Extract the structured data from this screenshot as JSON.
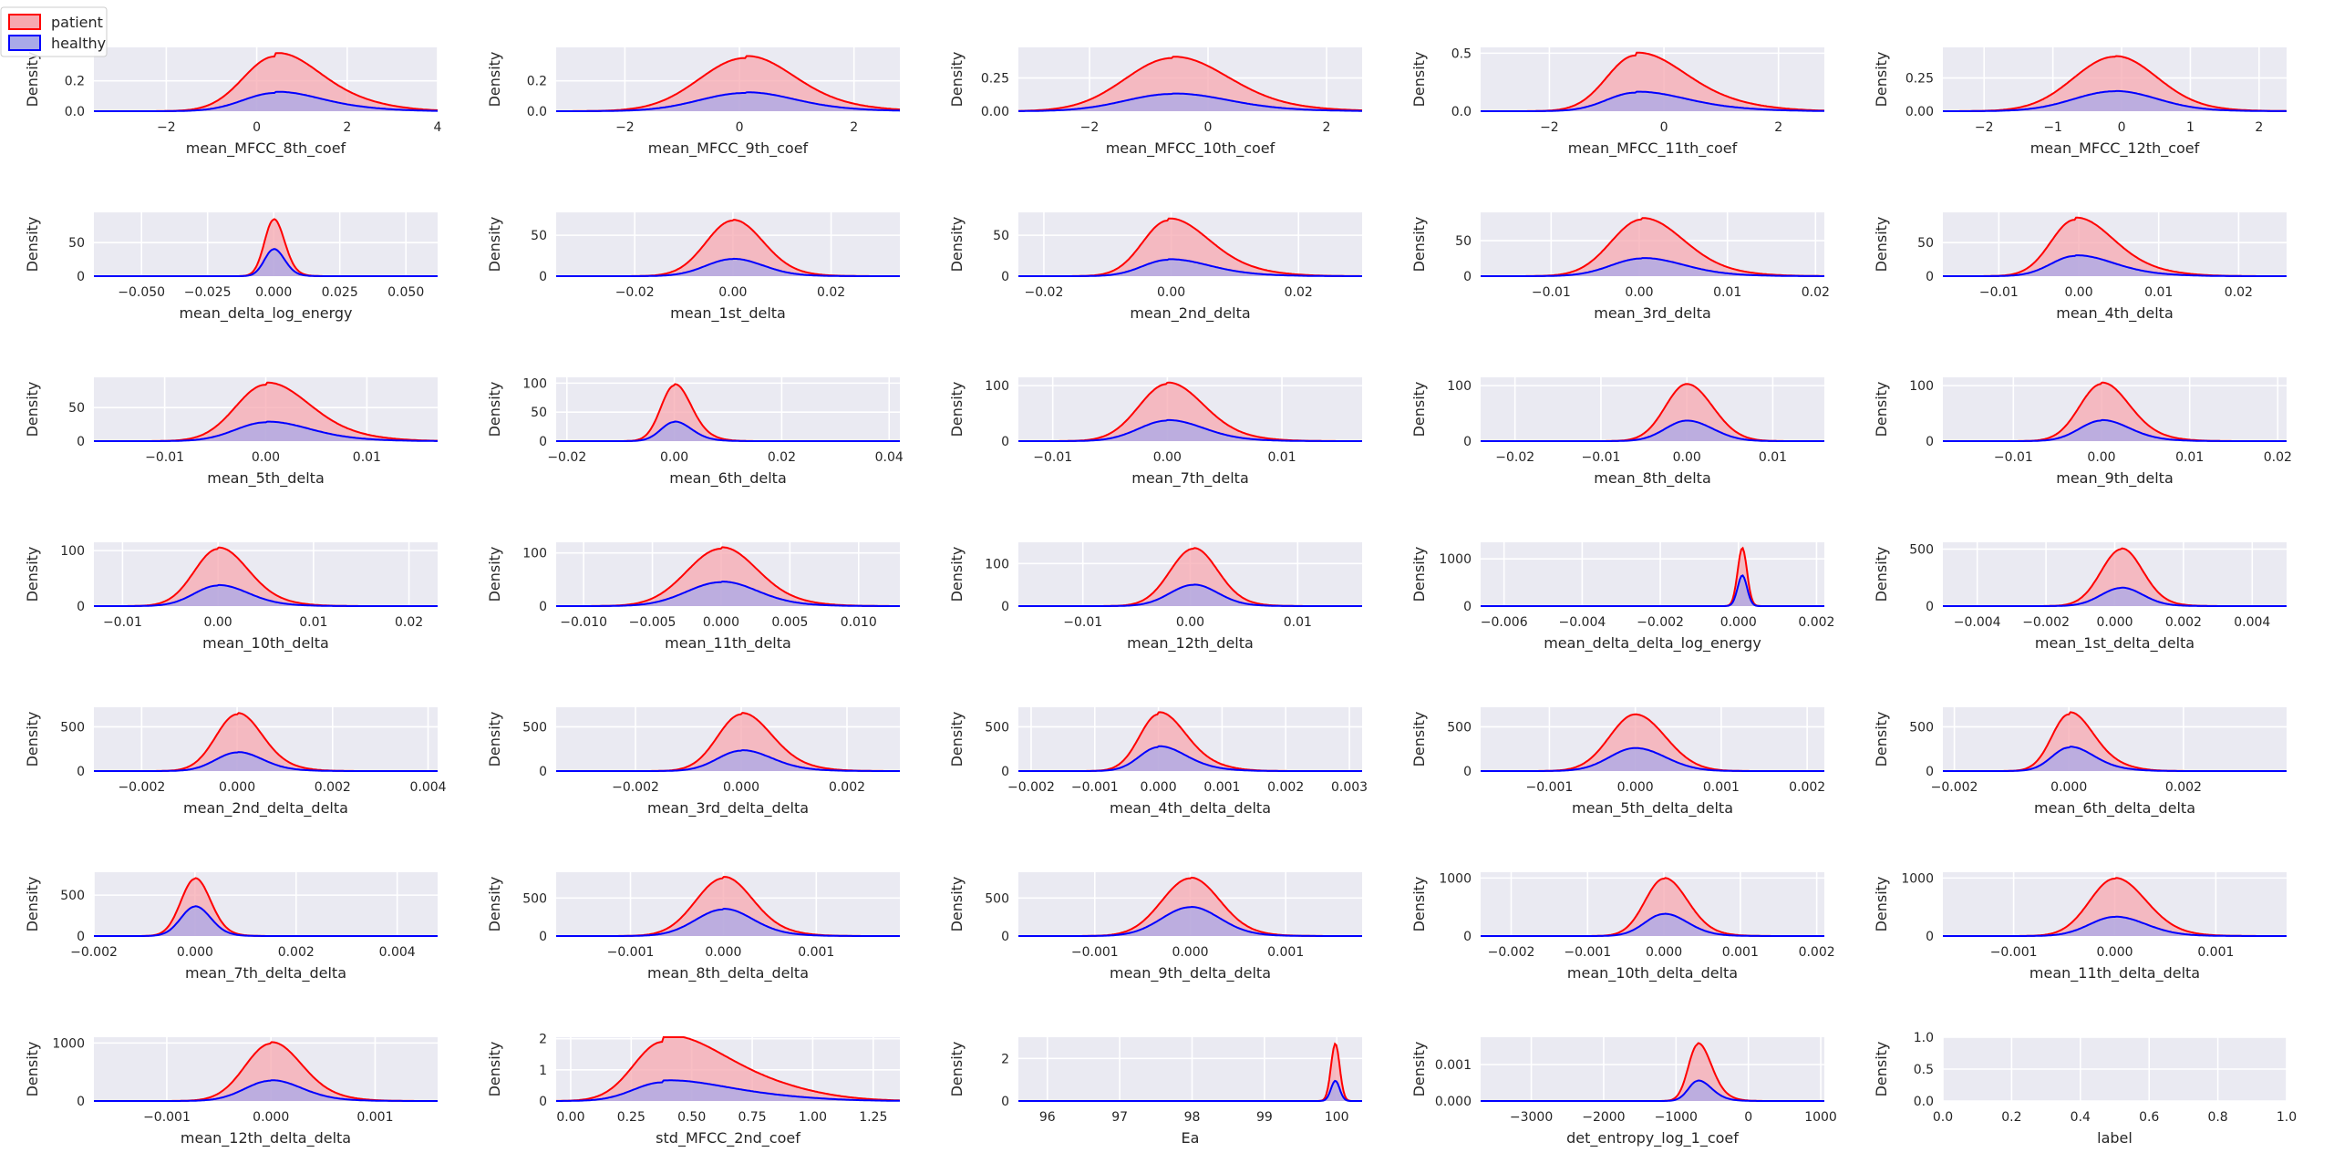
{
  "legend": {
    "entries": [
      {
        "label": "patient",
        "color": "#ff0000",
        "fill": "#f7a8b0"
      },
      {
        "label": "healthy",
        "color": "#0000ff",
        "fill": "#a9a9e8"
      }
    ]
  },
  "chart_data": [
    {
      "type": "kde",
      "xlabel": "mean_MFCC_8th_coef",
      "ylabel": "Density",
      "xlim": [
        -3.6,
        4.0
      ],
      "ylim": [
        0,
        0.42
      ],
      "xticks": [
        -2,
        0,
        2,
        4
      ],
      "yticks": [
        0.0,
        0.2
      ],
      "yfmt": 1,
      "mu": 0.4,
      "sd": 0.7,
      "sdr": 0.9,
      "peak_p": 0.36,
      "peak_h": 0.12,
      "skew": 0.5
    },
    {
      "type": "kde",
      "xlabel": "mean_MFCC_9th_coef",
      "ylabel": "Density",
      "xlim": [
        -3.2,
        2.8
      ],
      "ylim": [
        0,
        0.42
      ],
      "xticks": [
        -2,
        0,
        2
      ],
      "yticks": [
        0.0,
        0.2
      ],
      "yfmt": 1,
      "mu": 0.1,
      "sd": 0.8,
      "sdr": 0.8,
      "peak_p": 0.35,
      "peak_h": 0.12,
      "skew": 0.3
    },
    {
      "type": "kde",
      "xlabel": "mean_MFCC_10th_coef",
      "ylabel": "Density",
      "xlim": [
        -3.2,
        2.6
      ],
      "ylim": [
        0,
        0.48
      ],
      "xticks": [
        -2,
        0,
        2
      ],
      "yticks": [
        0.0,
        0.25
      ],
      "yfmt": 2,
      "mu": -0.6,
      "sd": 0.8,
      "sdr": 0.9,
      "peak_p": 0.4,
      "peak_h": 0.13,
      "skew": 0.2
    },
    {
      "type": "kde",
      "xlabel": "mean_MFCC_11th_coef",
      "ylabel": "Density",
      "xlim": [
        -3.2,
        2.8
      ],
      "ylim": [
        0,
        0.55
      ],
      "xticks": [
        -2,
        0,
        2
      ],
      "yticks": [
        0.0,
        0.5
      ],
      "yfmt": 1,
      "mu": -0.5,
      "sd": 0.5,
      "sdr": 0.8,
      "peak_p": 0.48,
      "peak_h": 0.16,
      "skew": 0.4
    },
    {
      "type": "kde",
      "xlabel": "mean_MFCC_12th_coef",
      "ylabel": "Density",
      "xlim": [
        -2.6,
        2.4
      ],
      "ylim": [
        0,
        0.48
      ],
      "xticks": [
        -2,
        -1,
        0,
        1,
        2
      ],
      "yticks": [
        0.0,
        0.25
      ],
      "yfmt": 2,
      "mu": -0.1,
      "sd": 0.6,
      "sdr": 0.6,
      "peak_p": 0.41,
      "peak_h": 0.15,
      "skew": 0.1
    },
    {
      "type": "kde",
      "xlabel": "mean_delta_log_energy",
      "ylabel": "Density",
      "xlim": [
        -0.068,
        0.062
      ],
      "ylim": [
        0,
        95
      ],
      "xticks": [
        -0.05,
        -0.025,
        0.0,
        0.025,
        0.05
      ],
      "yticks": [
        0,
        50
      ],
      "yfmt": 3,
      "mu": 0.0,
      "sd": 0.0035,
      "sdr": 0.004,
      "peak_p": 84,
      "peak_h": 40,
      "skew": 0.1
    },
    {
      "type": "kde",
      "xlabel": "mean_1st_delta",
      "ylabel": "Density",
      "xlim": [
        -0.036,
        0.034
      ],
      "ylim": [
        0,
        78
      ],
      "xticks": [
        -0.02,
        0.0,
        0.02
      ],
      "yticks": [
        0,
        50
      ],
      "yfmt": 2,
      "mu": 0.0,
      "sd": 0.0055,
      "sdr": 0.006,
      "peak_p": 68,
      "peak_h": 21,
      "skew": 0.1
    },
    {
      "type": "kde",
      "xlabel": "mean_2nd_delta",
      "ylabel": "Density",
      "xlim": [
        -0.024,
        0.03
      ],
      "ylim": [
        0,
        78
      ],
      "xticks": [
        -0.02,
        0.0,
        0.02
      ],
      "yticks": [
        0,
        50
      ],
      "yfmt": 2,
      "mu": -0.0005,
      "sd": 0.004,
      "sdr": 0.006,
      "peak_p": 68,
      "peak_h": 20,
      "skew": 0.3
    },
    {
      "type": "kde",
      "xlabel": "mean_3rd_delta",
      "ylabel": "Density",
      "xlim": [
        -0.018,
        0.021
      ],
      "ylim": [
        0,
        90
      ],
      "xticks": [
        -0.01,
        0.0,
        0.01,
        0.02
      ],
      "yticks": [
        0,
        50
      ],
      "yfmt": 2,
      "mu": 0.0003,
      "sd": 0.0035,
      "sdr": 0.0045,
      "peak_p": 80,
      "peak_h": 25,
      "skew": 0.2
    },
    {
      "type": "kde",
      "xlabel": "mean_4th_delta",
      "ylabel": "Density",
      "xlim": [
        -0.017,
        0.026
      ],
      "ylim": [
        0,
        95
      ],
      "xticks": [
        -0.01,
        0.0,
        0.01,
        0.02
      ],
      "yticks": [
        0,
        50
      ],
      "yfmt": 2,
      "mu": -0.0005,
      "sd": 0.003,
      "sdr": 0.0045,
      "peak_p": 84,
      "peak_h": 30,
      "skew": 0.3
    },
    {
      "type": "kde",
      "xlabel": "mean_5th_delta",
      "ylabel": "Density",
      "xlim": [
        -0.017,
        0.017
      ],
      "ylim": [
        0,
        95
      ],
      "xticks": [
        -0.01,
        0.0,
        0.01
      ],
      "yticks": [
        0,
        50
      ],
      "yfmt": 2,
      "mu": 0.0,
      "sd": 0.003,
      "sdr": 0.004,
      "peak_p": 84,
      "peak_h": 28,
      "skew": 0.3
    },
    {
      "type": "kde",
      "xlabel": "mean_6th_delta",
      "ylabel": "Density",
      "xlim": [
        -0.022,
        0.042
      ],
      "ylim": [
        0,
        110
      ],
      "xticks": [
        -0.02,
        0.0,
        0.02,
        0.04
      ],
      "yticks": [
        0,
        50,
        100
      ],
      "yfmt": 2,
      "mu": 0.0,
      "sd": 0.0025,
      "sdr": 0.003,
      "peak_p": 96,
      "peak_h": 33,
      "skew": 0.2
    },
    {
      "type": "kde",
      "xlabel": "mean_7th_delta",
      "ylabel": "Density",
      "xlim": [
        -0.013,
        0.017
      ],
      "ylim": [
        0,
        115
      ],
      "xticks": [
        -0.01,
        0.0,
        0.01
      ],
      "yticks": [
        0,
        100
      ],
      "yfmt": 2,
      "mu": 0.0,
      "sd": 0.0025,
      "sdr": 0.003,
      "peak_p": 103,
      "peak_h": 37,
      "skew": 0.2
    },
    {
      "type": "kde",
      "xlabel": "mean_8th_delta",
      "ylabel": "Density",
      "xlim": [
        -0.024,
        0.016
      ],
      "ylim": [
        0,
        115
      ],
      "xticks": [
        -0.02,
        -0.01,
        0.0,
        0.01
      ],
      "yticks": [
        0,
        100
      ],
      "yfmt": 2,
      "mu": 0.0,
      "sd": 0.0025,
      "sdr": 0.003,
      "peak_p": 103,
      "peak_h": 37,
      "skew": 0.0
    },
    {
      "type": "kde",
      "xlabel": "mean_9th_delta",
      "ylabel": "Density",
      "xlim": [
        -0.018,
        0.021
      ],
      "ylim": [
        0,
        115
      ],
      "xticks": [
        -0.01,
        0.0,
        0.01,
        0.02
      ],
      "yticks": [
        0,
        100
      ],
      "yfmt": 2,
      "mu": 0.0,
      "sd": 0.0025,
      "sdr": 0.003,
      "peak_p": 103,
      "peak_h": 37,
      "skew": 0.2
    },
    {
      "type": "kde",
      "xlabel": "mean_10th_delta",
      "ylabel": "Density",
      "xlim": [
        -0.013,
        0.023
      ],
      "ylim": [
        0,
        115
      ],
      "xticks": [
        -0.01,
        0.0,
        0.01,
        0.02
      ],
      "yticks": [
        0,
        100
      ],
      "yfmt": 2,
      "mu": 0.0,
      "sd": 0.0025,
      "sdr": 0.003,
      "peak_p": 103,
      "peak_h": 37,
      "skew": 0.2
    },
    {
      "type": "kde",
      "xlabel": "mean_11th_delta",
      "ylabel": "Density",
      "xlim": [
        -0.012,
        0.013
      ],
      "ylim": [
        0,
        120
      ],
      "xticks": [
        -0.01,
        -0.005,
        0.0,
        0.005,
        0.01
      ],
      "yticks": [
        0,
        100
      ],
      "yfmt": 3,
      "mu": 0.0,
      "sd": 0.0025,
      "sdr": 0.0025,
      "peak_p": 108,
      "peak_h": 45,
      "skew": 0.2
    },
    {
      "type": "kde",
      "xlabel": "mean_12th_delta",
      "ylabel": "Density",
      "xlim": [
        -0.016,
        0.016
      ],
      "ylim": [
        0,
        150
      ],
      "xticks": [
        -0.01,
        0.0,
        0.01
      ],
      "yticks": [
        0,
        100
      ],
      "yfmt": 2,
      "mu": 0.0003,
      "sd": 0.0022,
      "sdr": 0.0022,
      "peak_p": 135,
      "peak_h": 50,
      "skew": 0.1
    },
    {
      "type": "kde",
      "xlabel": "mean_delta_delta_log_energy",
      "ylabel": "Density",
      "xlim": [
        -0.0066,
        0.0022
      ],
      "ylim": [
        0,
        1350
      ],
      "xticks": [
        -0.006,
        -0.004,
        -0.002,
        0.0,
        0.002
      ],
      "yticks": [
        0,
        1000
      ],
      "yfmt": 3,
      "mu": 0.0001,
      "sd": 0.00012,
      "sdr": 0.00012,
      "peak_p": 1230,
      "peak_h": 650,
      "skew": 0.0
    },
    {
      "type": "kde",
      "xlabel": "mean_1st_delta_delta",
      "ylabel": "Density",
      "xlim": [
        -0.005,
        0.005
      ],
      "ylim": [
        0,
        560
      ],
      "xticks": [
        -0.004,
        -0.002,
        0.0,
        0.002,
        0.004
      ],
      "yticks": [
        0,
        500
      ],
      "yfmt": 3,
      "mu": 0.0002,
      "sd": 0.0006,
      "sdr": 0.0006,
      "peak_p": 500,
      "peak_h": 160,
      "skew": 0.1
    },
    {
      "type": "kde",
      "xlabel": "mean_2nd_delta_delta",
      "ylabel": "Density",
      "xlim": [
        -0.003,
        0.0042
      ],
      "ylim": [
        0,
        720
      ],
      "xticks": [
        -0.002,
        0.0,
        0.002,
        0.004
      ],
      "yticks": [
        0,
        500
      ],
      "yfmt": 3,
      "mu": 0.0,
      "sd": 0.00045,
      "sdr": 0.0005,
      "peak_p": 640,
      "peak_h": 210,
      "skew": 0.2
    },
    {
      "type": "kde",
      "xlabel": "mean_3rd_delta_delta",
      "ylabel": "Density",
      "xlim": [
        -0.0035,
        0.003
      ],
      "ylim": [
        0,
        720
      ],
      "xticks": [
        -0.002,
        0.0,
        0.002
      ],
      "yticks": [
        0,
        500
      ],
      "yfmt": 3,
      "mu": 0.0,
      "sd": 0.00045,
      "sdr": 0.00055,
      "peak_p": 640,
      "peak_h": 230,
      "skew": 0.2
    },
    {
      "type": "kde",
      "xlabel": "mean_4th_delta_delta",
      "ylabel": "Density",
      "xlim": [
        -0.0022,
        0.0032
      ],
      "ylim": [
        0,
        720
      ],
      "xticks": [
        -0.002,
        -0.001,
        0.0,
        0.001,
        0.002,
        0.003
      ],
      "yticks": [
        0,
        500
      ],
      "yfmt": 3,
      "mu": 0.0,
      "sd": 0.0003,
      "sdr": 0.0004,
      "peak_p": 640,
      "peak_h": 270,
      "skew": 0.3
    },
    {
      "type": "kde",
      "xlabel": "mean_5th_delta_delta",
      "ylabel": "Density",
      "xlim": [
        -0.0018,
        0.0022
      ],
      "ylim": [
        0,
        720
      ],
      "xticks": [
        -0.001,
        0.0,
        0.001,
        0.002
      ],
      "yticks": [
        0,
        500
      ],
      "yfmt": 3,
      "mu": 0.0,
      "sd": 0.0003,
      "sdr": 0.00035,
      "peak_p": 640,
      "peak_h": 260,
      "skew": 0.0
    },
    {
      "type": "kde",
      "xlabel": "mean_6th_delta_delta",
      "ylabel": "Density",
      "xlim": [
        -0.0022,
        0.0038
      ],
      "ylim": [
        0,
        720
      ],
      "xticks": [
        -0.002,
        0.0,
        0.002
      ],
      "yticks": [
        0,
        500
      ],
      "yfmt": 3,
      "mu": 0.0,
      "sd": 0.0003,
      "sdr": 0.0004,
      "peak_p": 640,
      "peak_h": 265,
      "skew": 0.3
    },
    {
      "type": "kde",
      "xlabel": "mean_7th_delta_delta",
      "ylabel": "Density",
      "xlim": [
        -0.002,
        0.0048
      ],
      "ylim": [
        0,
        780
      ],
      "xticks": [
        -0.002,
        0.0,
        0.002,
        0.004
      ],
      "yticks": [
        0,
        500
      ],
      "yfmt": 3,
      "mu": 0.0,
      "sd": 0.00028,
      "sdr": 0.0003,
      "peak_p": 700,
      "peak_h": 360,
      "skew": 0.1
    },
    {
      "type": "kde",
      "xlabel": "mean_8th_delta_delta",
      "ylabel": "Density",
      "xlim": [
        -0.0018,
        0.0019
      ],
      "ylim": [
        0,
        840
      ],
      "xticks": [
        -0.001,
        0.0,
        0.001
      ],
      "yticks": [
        0,
        500
      ],
      "yfmt": 3,
      "mu": 0.0,
      "sd": 0.0003,
      "sdr": 0.0003,
      "peak_p": 760,
      "peak_h": 350,
      "skew": 0.2
    },
    {
      "type": "kde",
      "xlabel": "mean_9th_delta_delta",
      "ylabel": "Density",
      "xlim": [
        -0.0018,
        0.0018
      ],
      "ylim": [
        0,
        840
      ],
      "xticks": [
        -0.001,
        0.0,
        0.001
      ],
      "yticks": [
        0,
        500
      ],
      "yfmt": 3,
      "mu": 0.0,
      "sd": 0.0003,
      "sdr": 0.0003,
      "peak_p": 760,
      "peak_h": 380,
      "skew": 0.1
    },
    {
      "type": "kde",
      "xlabel": "mean_10th_delta_delta",
      "ylabel": "Density",
      "xlim": [
        -0.0024,
        0.0021
      ],
      "ylim": [
        0,
        1100
      ],
      "xticks": [
        -0.002,
        -0.001,
        0.0,
        0.001,
        0.002
      ],
      "yticks": [
        0,
        1000
      ],
      "yfmt": 3,
      "mu": 0.0,
      "sd": 0.00025,
      "sdr": 0.0003,
      "peak_p": 990,
      "peak_h": 380,
      "skew": 0.1
    },
    {
      "type": "kde",
      "xlabel": "mean_11th_delta_delta",
      "ylabel": "Density",
      "xlim": [
        -0.0017,
        0.0017
      ],
      "ylim": [
        0,
        1100
      ],
      "xticks": [
        -0.001,
        0.0,
        0.001
      ],
      "yticks": [
        0,
        1000
      ],
      "yfmt": 3,
      "mu": 0.0,
      "sd": 0.00025,
      "sdr": 0.0003,
      "peak_p": 990,
      "peak_h": 330,
      "skew": 0.1
    },
    {
      "type": "kde",
      "xlabel": "mean_12th_delta_delta",
      "ylabel": "Density",
      "xlim": [
        -0.0017,
        0.0016
      ],
      "ylim": [
        0,
        1100
      ],
      "xticks": [
        -0.001,
        0.0,
        0.001
      ],
      "yticks": [
        0,
        1000
      ],
      "yfmt": 3,
      "mu": 0.0,
      "sd": 0.00025,
      "sdr": 0.00028,
      "peak_p": 990,
      "peak_h": 350,
      "skew": 0.2
    },
    {
      "type": "kde",
      "xlabel": "std_MFCC_2nd_coef",
      "ylabel": "Density",
      "xlim": [
        -0.06,
        1.36
      ],
      "ylim": [
        0,
        2.05
      ],
      "xticks": [
        0.0,
        0.25,
        0.5,
        0.75,
        1.0,
        1.25
      ],
      "yticks": [
        0,
        1,
        2
      ],
      "yfmt": 2,
      "mu": 0.38,
      "sd": 0.12,
      "sdr": 0.22,
      "peak_p": 1.9,
      "peak_h": 0.6,
      "skew": 0.8
    },
    {
      "type": "kde",
      "xlabel": "Ea",
      "ylabel": "Density",
      "xlim": [
        95.6,
        100.35
      ],
      "ylim": [
        0,
        3.0
      ],
      "xticks": [
        96,
        97,
        98,
        99,
        100
      ],
      "yticks": [
        0,
        2
      ],
      "yfmt": 0,
      "mu": 99.98,
      "sd": 0.06,
      "sdr": 0.06,
      "peak_p": 2.7,
      "peak_h": 0.95,
      "skew": 0.0
    },
    {
      "type": "kde",
      "xlabel": "det_entropy_log_1_coef",
      "ylabel": "Density",
      "xlim": [
        -3700,
        1050
      ],
      "ylim": [
        0,
        0.00175
      ],
      "xticks": [
        -3000,
        -2000,
        -1000,
        0,
        1000
      ],
      "yticks": [
        0.0,
        0.001
      ],
      "yfmt": 3,
      "mu": -700,
      "sd": 130,
      "sdr": 180,
      "peak_p": 0.00155,
      "peak_h": 0.00055,
      "skew": 0.2
    },
    {
      "type": "empty",
      "xlabel": "label",
      "ylabel": "Density",
      "xlim": [
        0,
        1
      ],
      "ylim": [
        0,
        1
      ],
      "xticks": [
        0.0,
        0.2,
        0.4,
        0.6,
        0.8,
        1.0
      ],
      "yticks": [
        0.0,
        0.5,
        1.0
      ],
      "yfmt": 1
    }
  ]
}
